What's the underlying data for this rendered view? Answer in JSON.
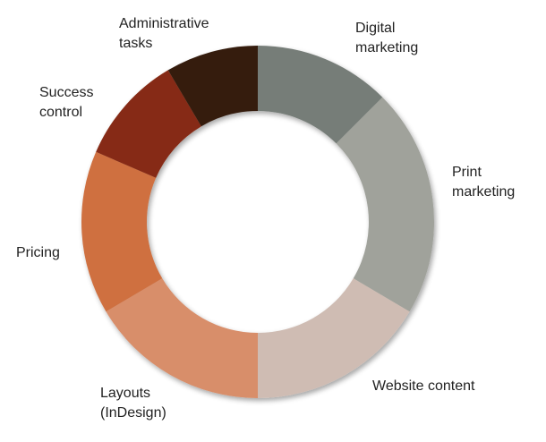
{
  "chart_data": {
    "type": "pie",
    "donut": true,
    "title": "",
    "start_angle_deg": 0,
    "direction": "clockwise",
    "legend": "none",
    "slices": [
      {
        "label_lines": [
          "Digital",
          "marketing"
        ],
        "value": 12.5,
        "color": "#767d78"
      },
      {
        "label_lines": [
          "Print",
          "marketing"
        ],
        "value": 21.0,
        "color": "#a0a29b"
      },
      {
        "label_lines": [
          "Website content"
        ],
        "value": 16.5,
        "color": "#cfbcb3"
      },
      {
        "label_lines": [
          "Layouts",
          "(InDesign)"
        ],
        "value": 16.5,
        "color": "#d88e6b"
      },
      {
        "label_lines": [
          "Pricing"
        ],
        "value": 15.0,
        "color": "#cf6f3f"
      },
      {
        "label_lines": [
          "Success",
          "control"
        ],
        "value": 10.0,
        "color": "#862c13"
      },
      {
        "label_lines": [
          "Administrative",
          "tasks"
        ],
        "value": 8.5,
        "color": "#351c10"
      }
    ]
  }
}
